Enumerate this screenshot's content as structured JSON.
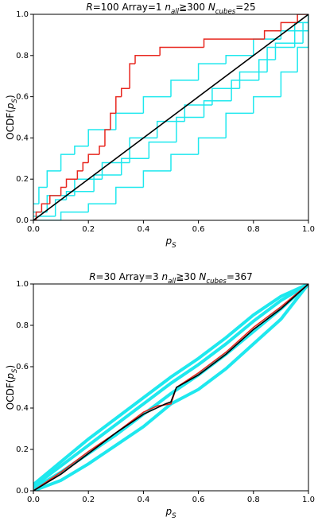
{
  "chart_data": [
    {
      "type": "step-lines",
      "title": [
        "R",
        "=100 Array=1 ",
        "n",
        "all",
        "≧300 ",
        "N",
        "cubes",
        "=25"
      ],
      "xlabel": [
        "p",
        "S"
      ],
      "ylabel": [
        "OCDF(",
        "p",
        "S",
        ")"
      ],
      "xlim": [
        0,
        1
      ],
      "ylim": [
        0,
        1
      ],
      "xticks": [
        {
          "value": 0,
          "label": "0.0"
        },
        0.2,
        0.4,
        0.6,
        0.8,
        {
          "value": 1,
          "label": "1.0"
        }
      ],
      "yticks": [
        {
          "value": 0,
          "label": "0.0"
        },
        0.2,
        0.4,
        0.6,
        0.8,
        {
          "value": 1,
          "label": "1.0"
        }
      ],
      "series": [
        {
          "color": "#1ee8ee",
          "drawstyle": "steps",
          "x": [
            0,
            0.02,
            0.05,
            0.1,
            0.15,
            0.2,
            0.3,
            0.4,
            0.5,
            0.6,
            0.7,
            0.8,
            0.9,
            0.95,
            1
          ],
          "values": [
            0.08,
            0.16,
            0.24,
            0.32,
            0.36,
            0.44,
            0.52,
            0.6,
            0.68,
            0.76,
            0.8,
            0.88,
            0.92,
            0.96,
            1
          ]
        },
        {
          "color": "#1ee8ee",
          "drawstyle": "steps",
          "x": [
            0,
            0.1,
            0.2,
            0.3,
            0.4,
            0.5,
            0.6,
            0.7,
            0.8,
            0.9,
            0.96,
            1
          ],
          "values": [
            0,
            0.04,
            0.08,
            0.16,
            0.24,
            0.32,
            0.4,
            0.52,
            0.6,
            0.72,
            0.84,
            1
          ]
        },
        {
          "color": "#1ee8ee",
          "drawstyle": "steps",
          "x": [
            0,
            0.05,
            0.15,
            0.25,
            0.35,
            0.45,
            0.55,
            0.65,
            0.75,
            0.85,
            0.95,
            1
          ],
          "values": [
            0.04,
            0.12,
            0.2,
            0.28,
            0.4,
            0.48,
            0.56,
            0.64,
            0.72,
            0.84,
            0.92,
            1
          ]
        },
        {
          "color": "#1ee8ee",
          "drawstyle": "steps",
          "x": [
            0,
            0.08,
            0.12,
            0.22,
            0.32,
            0.42,
            0.52,
            0.62,
            0.72,
            0.82,
            0.88,
            0.98,
            1
          ],
          "values": [
            0.02,
            0.1,
            0.14,
            0.22,
            0.3,
            0.38,
            0.5,
            0.58,
            0.68,
            0.78,
            0.86,
            0.96,
            1
          ]
        },
        {
          "color": "#e8271f",
          "drawstyle": "steps",
          "x": [
            0,
            0.01,
            0.03,
            0.06,
            0.1,
            0.12,
            0.16,
            0.18,
            0.2,
            0.24,
            0.26,
            0.28,
            0.3,
            0.32,
            0.35,
            0.37,
            0.46,
            0.62,
            0.84,
            0.9,
            0.96,
            1
          ],
          "values": [
            0,
            0.04,
            0.08,
            0.12,
            0.16,
            0.2,
            0.24,
            0.28,
            0.32,
            0.36,
            0.44,
            0.52,
            0.6,
            0.64,
            0.76,
            0.8,
            0.84,
            0.88,
            0.92,
            0.96,
            1,
            1
          ]
        },
        {
          "color": "#000000",
          "drawstyle": "line",
          "x": [
            0,
            1
          ],
          "values": [
            0,
            1
          ]
        }
      ]
    },
    {
      "type": "step-lines",
      "title": [
        "R",
        "=30 Array=3 ",
        "n",
        "all",
        "≧30 ",
        "N",
        "cubes",
        "=367"
      ],
      "xlabel": [
        "p",
        "S"
      ],
      "ylabel": [
        "OCDF(",
        "p",
        "S",
        ")"
      ],
      "xlim": [
        0,
        1
      ],
      "ylim": [
        0,
        1
      ],
      "xticks": [
        {
          "value": 0,
          "label": "0.0"
        },
        0.2,
        0.4,
        0.6,
        0.8,
        {
          "value": 1,
          "label": "1.0"
        }
      ],
      "yticks": [
        {
          "value": 0,
          "label": "0.0"
        },
        0.2,
        0.4,
        0.6,
        0.8,
        {
          "value": 1,
          "label": "1.0"
        }
      ],
      "series": [
        {
          "color": "#1ee8ee",
          "drawstyle": "line",
          "x": [
            0,
            0.1,
            0.2,
            0.3,
            0.4,
            0.5,
            0.6,
            0.7,
            0.8,
            0.9,
            1
          ],
          "values": [
            0.03,
            0.14,
            0.25,
            0.35,
            0.45,
            0.55,
            0.64,
            0.74,
            0.85,
            0.94,
            1
          ]
        },
        {
          "color": "#1ee8ee",
          "drawstyle": "line",
          "x": [
            0,
            0.1,
            0.2,
            0.3,
            0.4,
            0.5,
            0.6,
            0.7,
            0.8,
            0.9,
            1
          ],
          "values": [
            0.02,
            0.12,
            0.22,
            0.32,
            0.42,
            0.52,
            0.61,
            0.71,
            0.82,
            0.92,
            1
          ]
        },
        {
          "color": "#1ee8ee",
          "drawstyle": "line",
          "x": [
            0,
            0.1,
            0.2,
            0.3,
            0.4,
            0.5,
            0.6,
            0.7,
            0.8,
            0.9,
            1
          ],
          "values": [
            0.01,
            0.09,
            0.18,
            0.27,
            0.37,
            0.47,
            0.56,
            0.66,
            0.77,
            0.88,
            1
          ]
        },
        {
          "color": "#1ee8ee",
          "drawstyle": "line",
          "x": [
            0,
            0.1,
            0.2,
            0.3,
            0.4,
            0.5,
            0.6,
            0.7,
            0.8,
            0.9,
            1
          ],
          "values": [
            0,
            0.05,
            0.13,
            0.22,
            0.31,
            0.42,
            0.49,
            0.59,
            0.71,
            0.83,
            1
          ]
        },
        {
          "color": "#e8271f",
          "drawstyle": "line",
          "x": [
            0,
            0.1,
            0.2,
            0.3,
            0.4,
            0.45,
            0.5,
            0.52,
            0.6,
            0.7,
            0.8,
            0.9,
            1
          ],
          "values": [
            0,
            0.09,
            0.19,
            0.28,
            0.38,
            0.41,
            0.42,
            0.5,
            0.57,
            0.67,
            0.79,
            0.89,
            1
          ]
        },
        {
          "color": "#000000",
          "drawstyle": "line",
          "x": [
            0,
            0.1,
            0.2,
            0.3,
            0.4,
            0.48,
            0.5,
            0.52,
            0.6,
            0.7,
            0.8,
            0.9,
            1
          ],
          "values": [
            0,
            0.08,
            0.18,
            0.28,
            0.37,
            0.42,
            0.43,
            0.5,
            0.56,
            0.66,
            0.78,
            0.88,
            1
          ]
        }
      ]
    }
  ]
}
